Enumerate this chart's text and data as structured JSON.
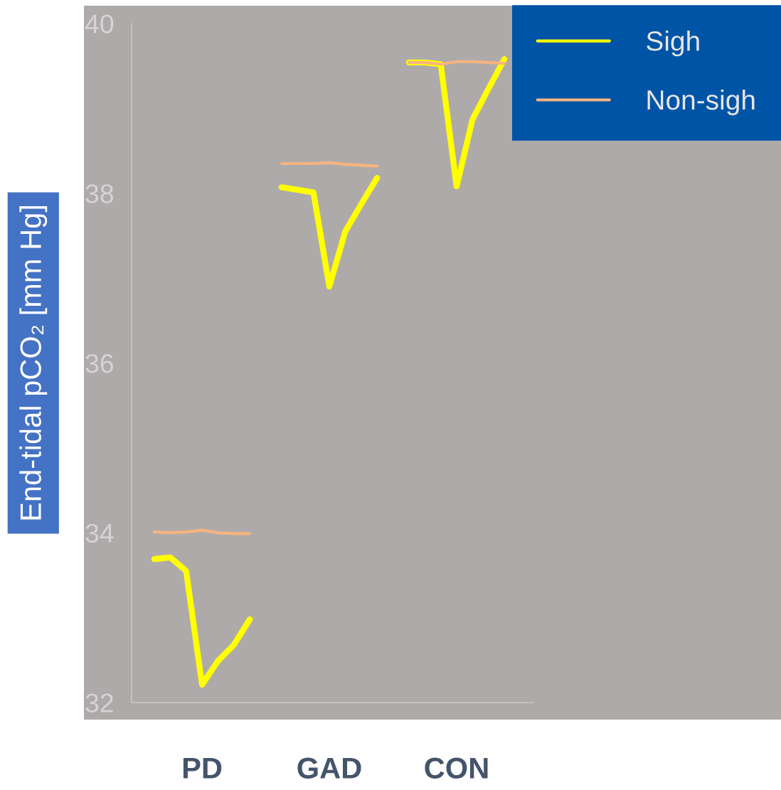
{
  "chart_data": {
    "type": "line",
    "ylabel": "End-tidal pCO₂ [mm Hg]",
    "categories": [
      null,
      null,
      null,
      "PD",
      null,
      null,
      null,
      null,
      null,
      null,
      null,
      "GAD",
      null,
      null,
      null,
      null,
      null,
      null,
      null,
      "CON",
      null,
      null,
      null
    ],
    "series": [
      {
        "name": "Sigh",
        "color": "#ffff00",
        "values": [
          33.69,
          33.71,
          33.55,
          32.21,
          32.49,
          32.68,
          32.98,
          null,
          38.07,
          38.04,
          38.01,
          36.9,
          37.55,
          37.87,
          38.18,
          null,
          39.54,
          39.54,
          39.52,
          38.08,
          38.87,
          39.23,
          39.58
        ]
      },
      {
        "name": "Non-sigh",
        "color": "#f7b47e",
        "values": [
          34.01,
          34.0,
          34.01,
          34.03,
          34.0,
          33.99,
          33.99,
          null,
          38.35,
          38.35,
          38.35,
          38.36,
          38.34,
          38.33,
          38.32,
          null,
          39.54,
          39.54,
          39.52,
          39.55,
          39.55,
          39.54,
          39.53
        ]
      }
    ],
    "ylim": [
      32,
      40
    ],
    "yticks": [
      32,
      34,
      36,
      38,
      40
    ],
    "grid": false,
    "legend": "top right"
  }
}
